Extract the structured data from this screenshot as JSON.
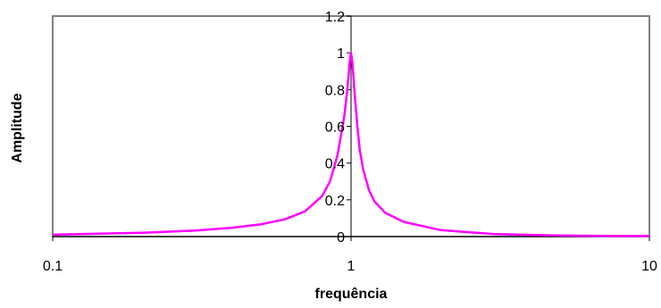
{
  "chart_data": {
    "type": "line",
    "title": "",
    "xlabel": "frequência",
    "ylabel": "Amplitude",
    "x_scale": "log",
    "xlim": [
      0.1,
      10
    ],
    "ylim": [
      0,
      1.2
    ],
    "x_ticks": [
      0.1,
      1,
      10
    ],
    "x_tick_labels": [
      "0.1",
      "1",
      "10"
    ],
    "y_ticks": [
      0,
      0.2,
      0.4,
      0.6,
      0.8,
      1,
      1.2
    ],
    "y_tick_labels": [
      "0",
      "0.2",
      "0.4",
      "0.6",
      "0.8",
      "1",
      "1.2"
    ],
    "grid": false,
    "legend": "none",
    "series": [
      {
        "color": "#ff00ff",
        "x": [
          0.1,
          0.2,
          0.3,
          0.4,
          0.5,
          0.6,
          0.7,
          0.8,
          0.85,
          0.9,
          0.93,
          0.95,
          0.97,
          0.98,
          0.99,
          1.0,
          1.01,
          1.02,
          1.03,
          1.05,
          1.07,
          1.1,
          1.15,
          1.2,
          1.3,
          1.5,
          2,
          3,
          4,
          5,
          7,
          10
        ],
        "y": [
          0.01,
          0.021,
          0.033,
          0.048,
          0.067,
          0.094,
          0.137,
          0.22,
          0.3,
          0.44,
          0.57,
          0.66,
          0.79,
          0.87,
          0.95,
          1.0,
          0.95,
          0.86,
          0.76,
          0.6,
          0.47,
          0.36,
          0.25,
          0.19,
          0.13,
          0.08,
          0.035,
          0.014,
          0.009,
          0.006,
          0.004,
          0.003
        ]
      }
    ]
  }
}
